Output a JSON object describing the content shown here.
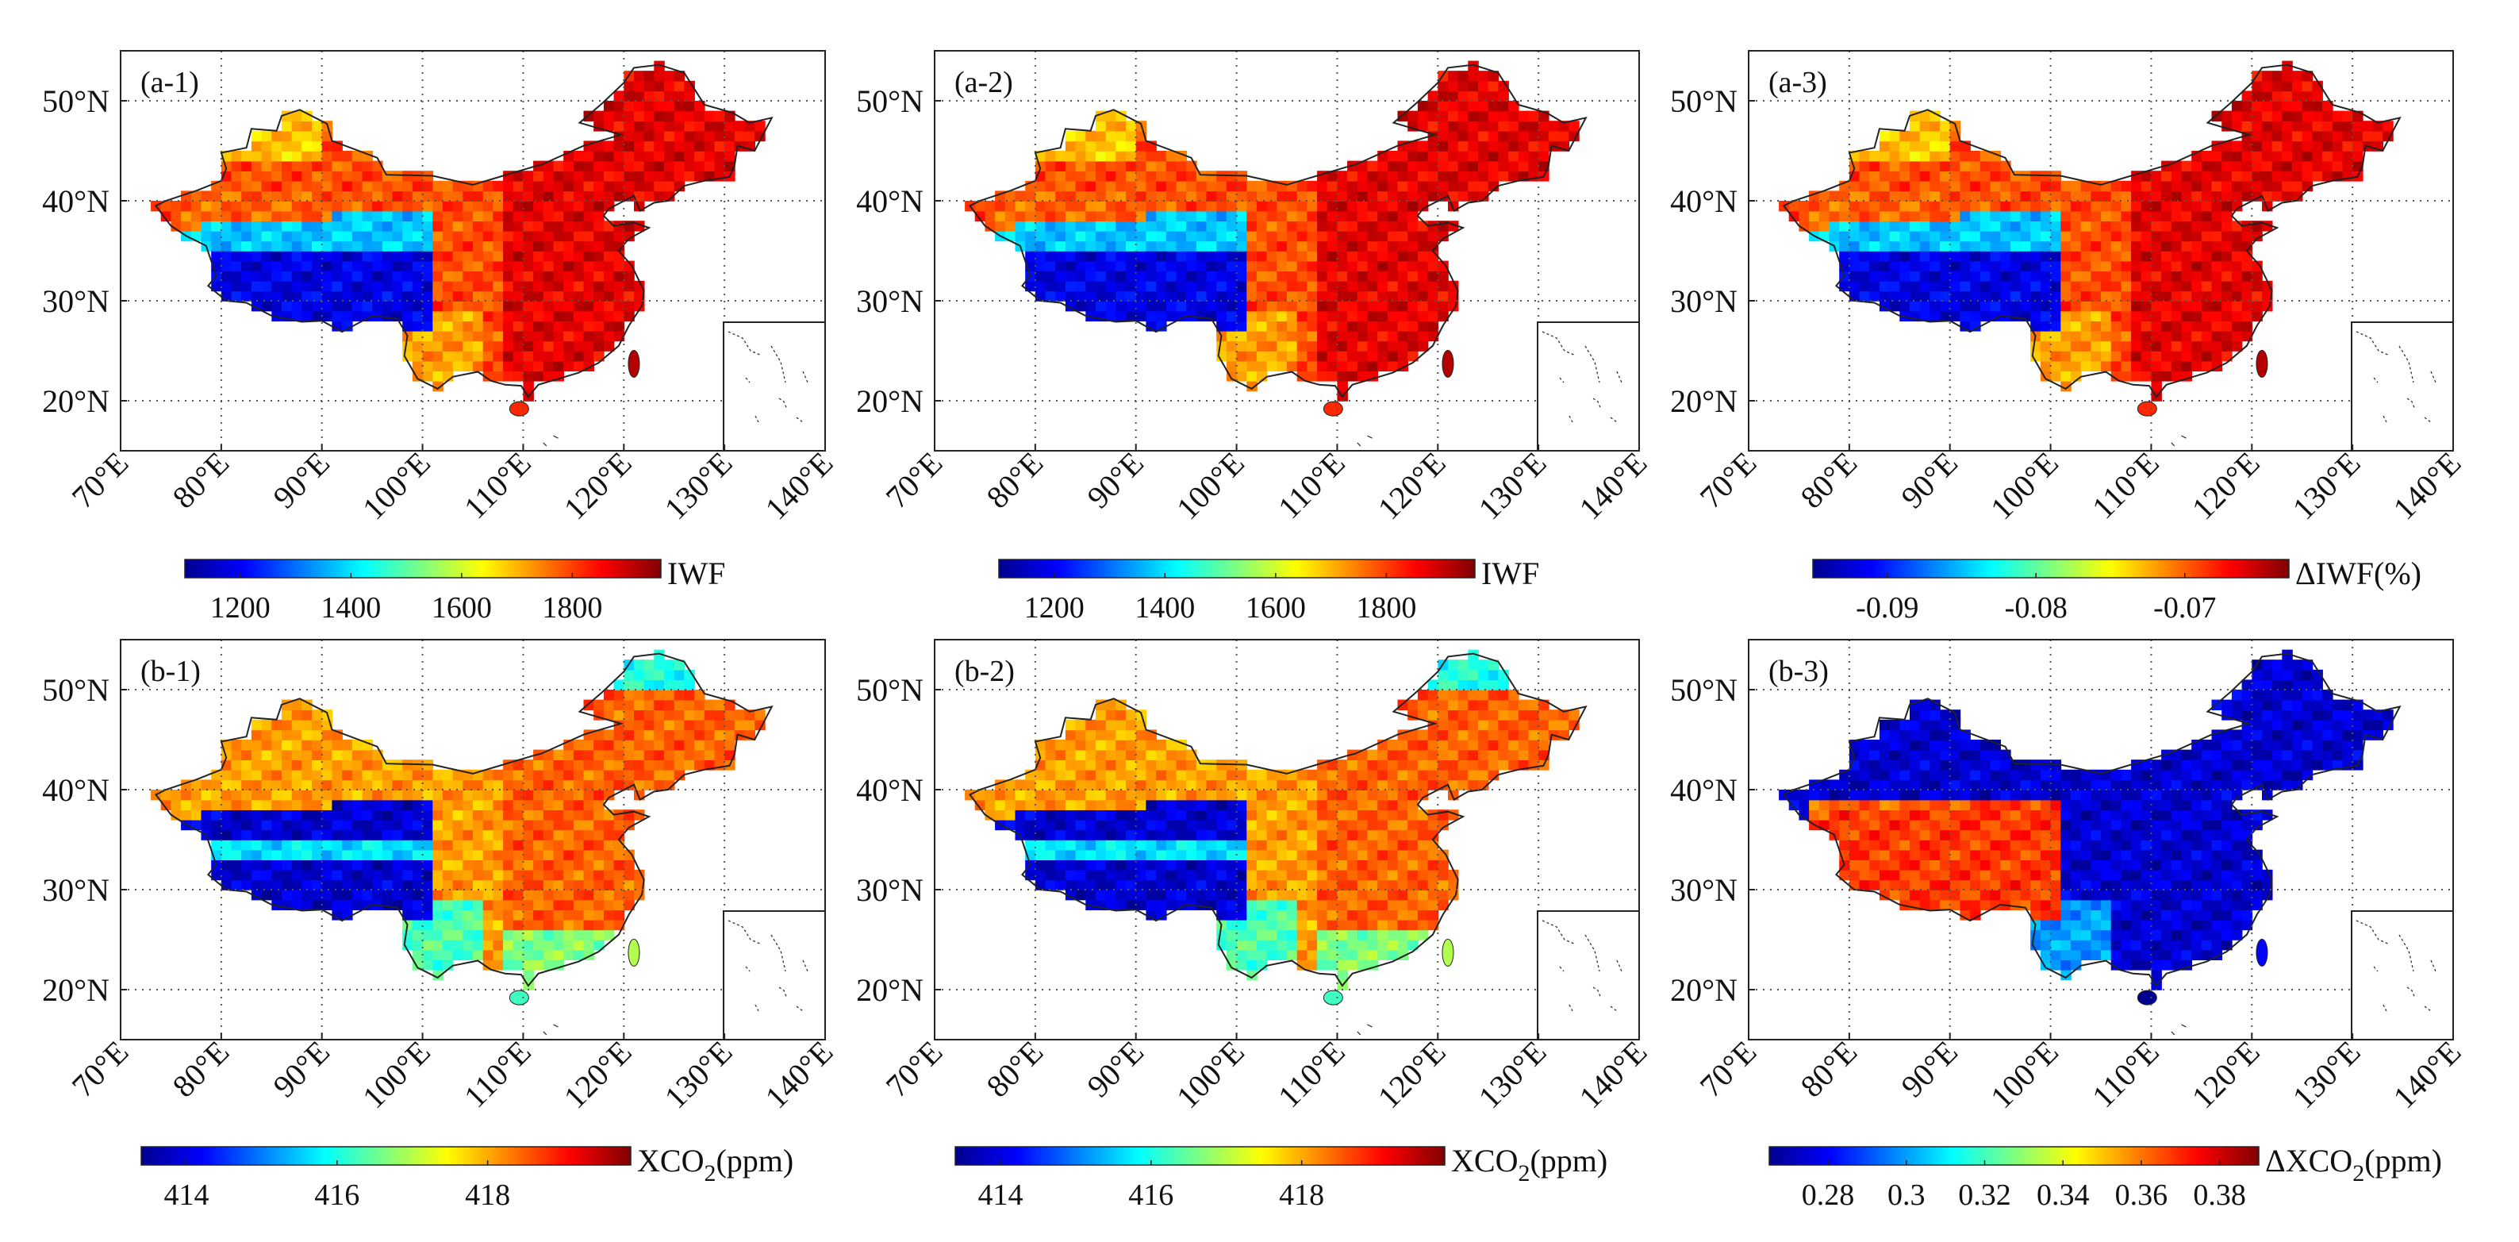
{
  "chart_data": [
    {
      "type": "heatmap",
      "id": "a1",
      "title": "(a-1)",
      "variable": "IWF",
      "xlabel_ticks": [
        "70°E",
        "80°E",
        "90°E",
        "100°E",
        "110°E",
        "120°E",
        "130°E",
        "140°E"
      ],
      "ylabel_ticks": [
        "20°N",
        "30°N",
        "40°N",
        "50°N"
      ],
      "xlim": [
        70,
        140
      ],
      "ylim": [
        15,
        55
      ],
      "colorbar": {
        "label": "IWF",
        "ticks": [
          1200,
          1400,
          1600,
          1800
        ],
        "range": [
          1100,
          1960
        ],
        "colormap": "jet"
      },
      "pattern": "high-east-low-plateau"
    },
    {
      "type": "heatmap",
      "id": "a2",
      "title": "(a-2)",
      "variable": "IWF",
      "xlabel_ticks": [
        "70°E",
        "80°E",
        "90°E",
        "100°E",
        "110°E",
        "120°E",
        "130°E",
        "140°E"
      ],
      "ylabel_ticks": [
        "20°N",
        "30°N",
        "40°N",
        "50°N"
      ],
      "xlim": [
        70,
        140
      ],
      "ylim": [
        15,
        55
      ],
      "colorbar": {
        "label": "IWF",
        "ticks": [
          1200,
          1400,
          1600,
          1800
        ],
        "range": [
          1100,
          1960
        ],
        "colormap": "jet"
      },
      "pattern": "high-east-low-plateau"
    },
    {
      "type": "heatmap",
      "id": "a3",
      "title": "(a-3)",
      "variable": "ΔIWF(%)",
      "xlabel_ticks": [
        "70°E",
        "80°E",
        "90°E",
        "100°E",
        "110°E",
        "120°E",
        "130°E",
        "140°E"
      ],
      "ylabel_ticks": [
        "20°N",
        "30°N",
        "40°N",
        "50°N"
      ],
      "xlim": [
        70,
        140
      ],
      "ylim": [
        15,
        55
      ],
      "colorbar": {
        "label": "ΔIWF(%)",
        "ticks": [
          "-0.09",
          "-0.08",
          "-0.07"
        ],
        "range": [
          -0.095,
          -0.063
        ],
        "colormap": "jet"
      },
      "pattern": "high-east-low-plateau"
    },
    {
      "type": "heatmap",
      "id": "b1",
      "title": "(b-1)",
      "variable": "XCO2(ppm)",
      "xlabel_ticks": [
        "70°E",
        "80°E",
        "90°E",
        "100°E",
        "110°E",
        "120°E",
        "130°E",
        "140°E"
      ],
      "ylabel_ticks": [
        "20°N",
        "30°N",
        "40°N",
        "50°N"
      ],
      "xlim": [
        70,
        140
      ],
      "ylim": [
        15,
        55
      ],
      "colorbar": {
        "label": "XCO",
        "sub": "2",
        "unit": "(ppm)",
        "ticks": [
          "414",
          "416",
          "418"
        ],
        "range": [
          413.4,
          419.9
        ],
        "colormap": "jet"
      },
      "pattern": "xco2"
    },
    {
      "type": "heatmap",
      "id": "b2",
      "title": "(b-2)",
      "variable": "XCO2(ppm)",
      "xlabel_ticks": [
        "70°E",
        "80°E",
        "90°E",
        "100°E",
        "110°E",
        "120°E",
        "130°E",
        "140°E"
      ],
      "ylabel_ticks": [
        "20°N",
        "30°N",
        "40°N",
        "50°N"
      ],
      "xlim": [
        70,
        140
      ],
      "ylim": [
        15,
        55
      ],
      "colorbar": {
        "label": "XCO",
        "sub": "2",
        "unit": "(ppm)",
        "ticks": [
          "414",
          "416",
          "418"
        ],
        "range": [
          413.4,
          419.9
        ],
        "colormap": "jet"
      },
      "pattern": "xco2"
    },
    {
      "type": "heatmap",
      "id": "b3",
      "title": "(b-3)",
      "variable": "ΔXCO2(ppm)",
      "xlabel_ticks": [
        "70°E",
        "80°E",
        "90°E",
        "100°E",
        "110°E",
        "120°E",
        "130°E",
        "140°E"
      ],
      "ylabel_ticks": [
        "20°N",
        "30°N",
        "40°N",
        "50°N"
      ],
      "xlim": [
        70,
        140
      ],
      "ylim": [
        15,
        55
      ],
      "colorbar": {
        "label": "ΔXCO",
        "sub": "2",
        "unit": "(ppm)",
        "ticks": [
          "0.28",
          "0.3",
          "0.32",
          "0.34",
          "0.36",
          "0.38"
        ],
        "range": [
          0.265,
          0.39
        ],
        "colormap": "jet"
      },
      "pattern": "dxco2"
    }
  ]
}
